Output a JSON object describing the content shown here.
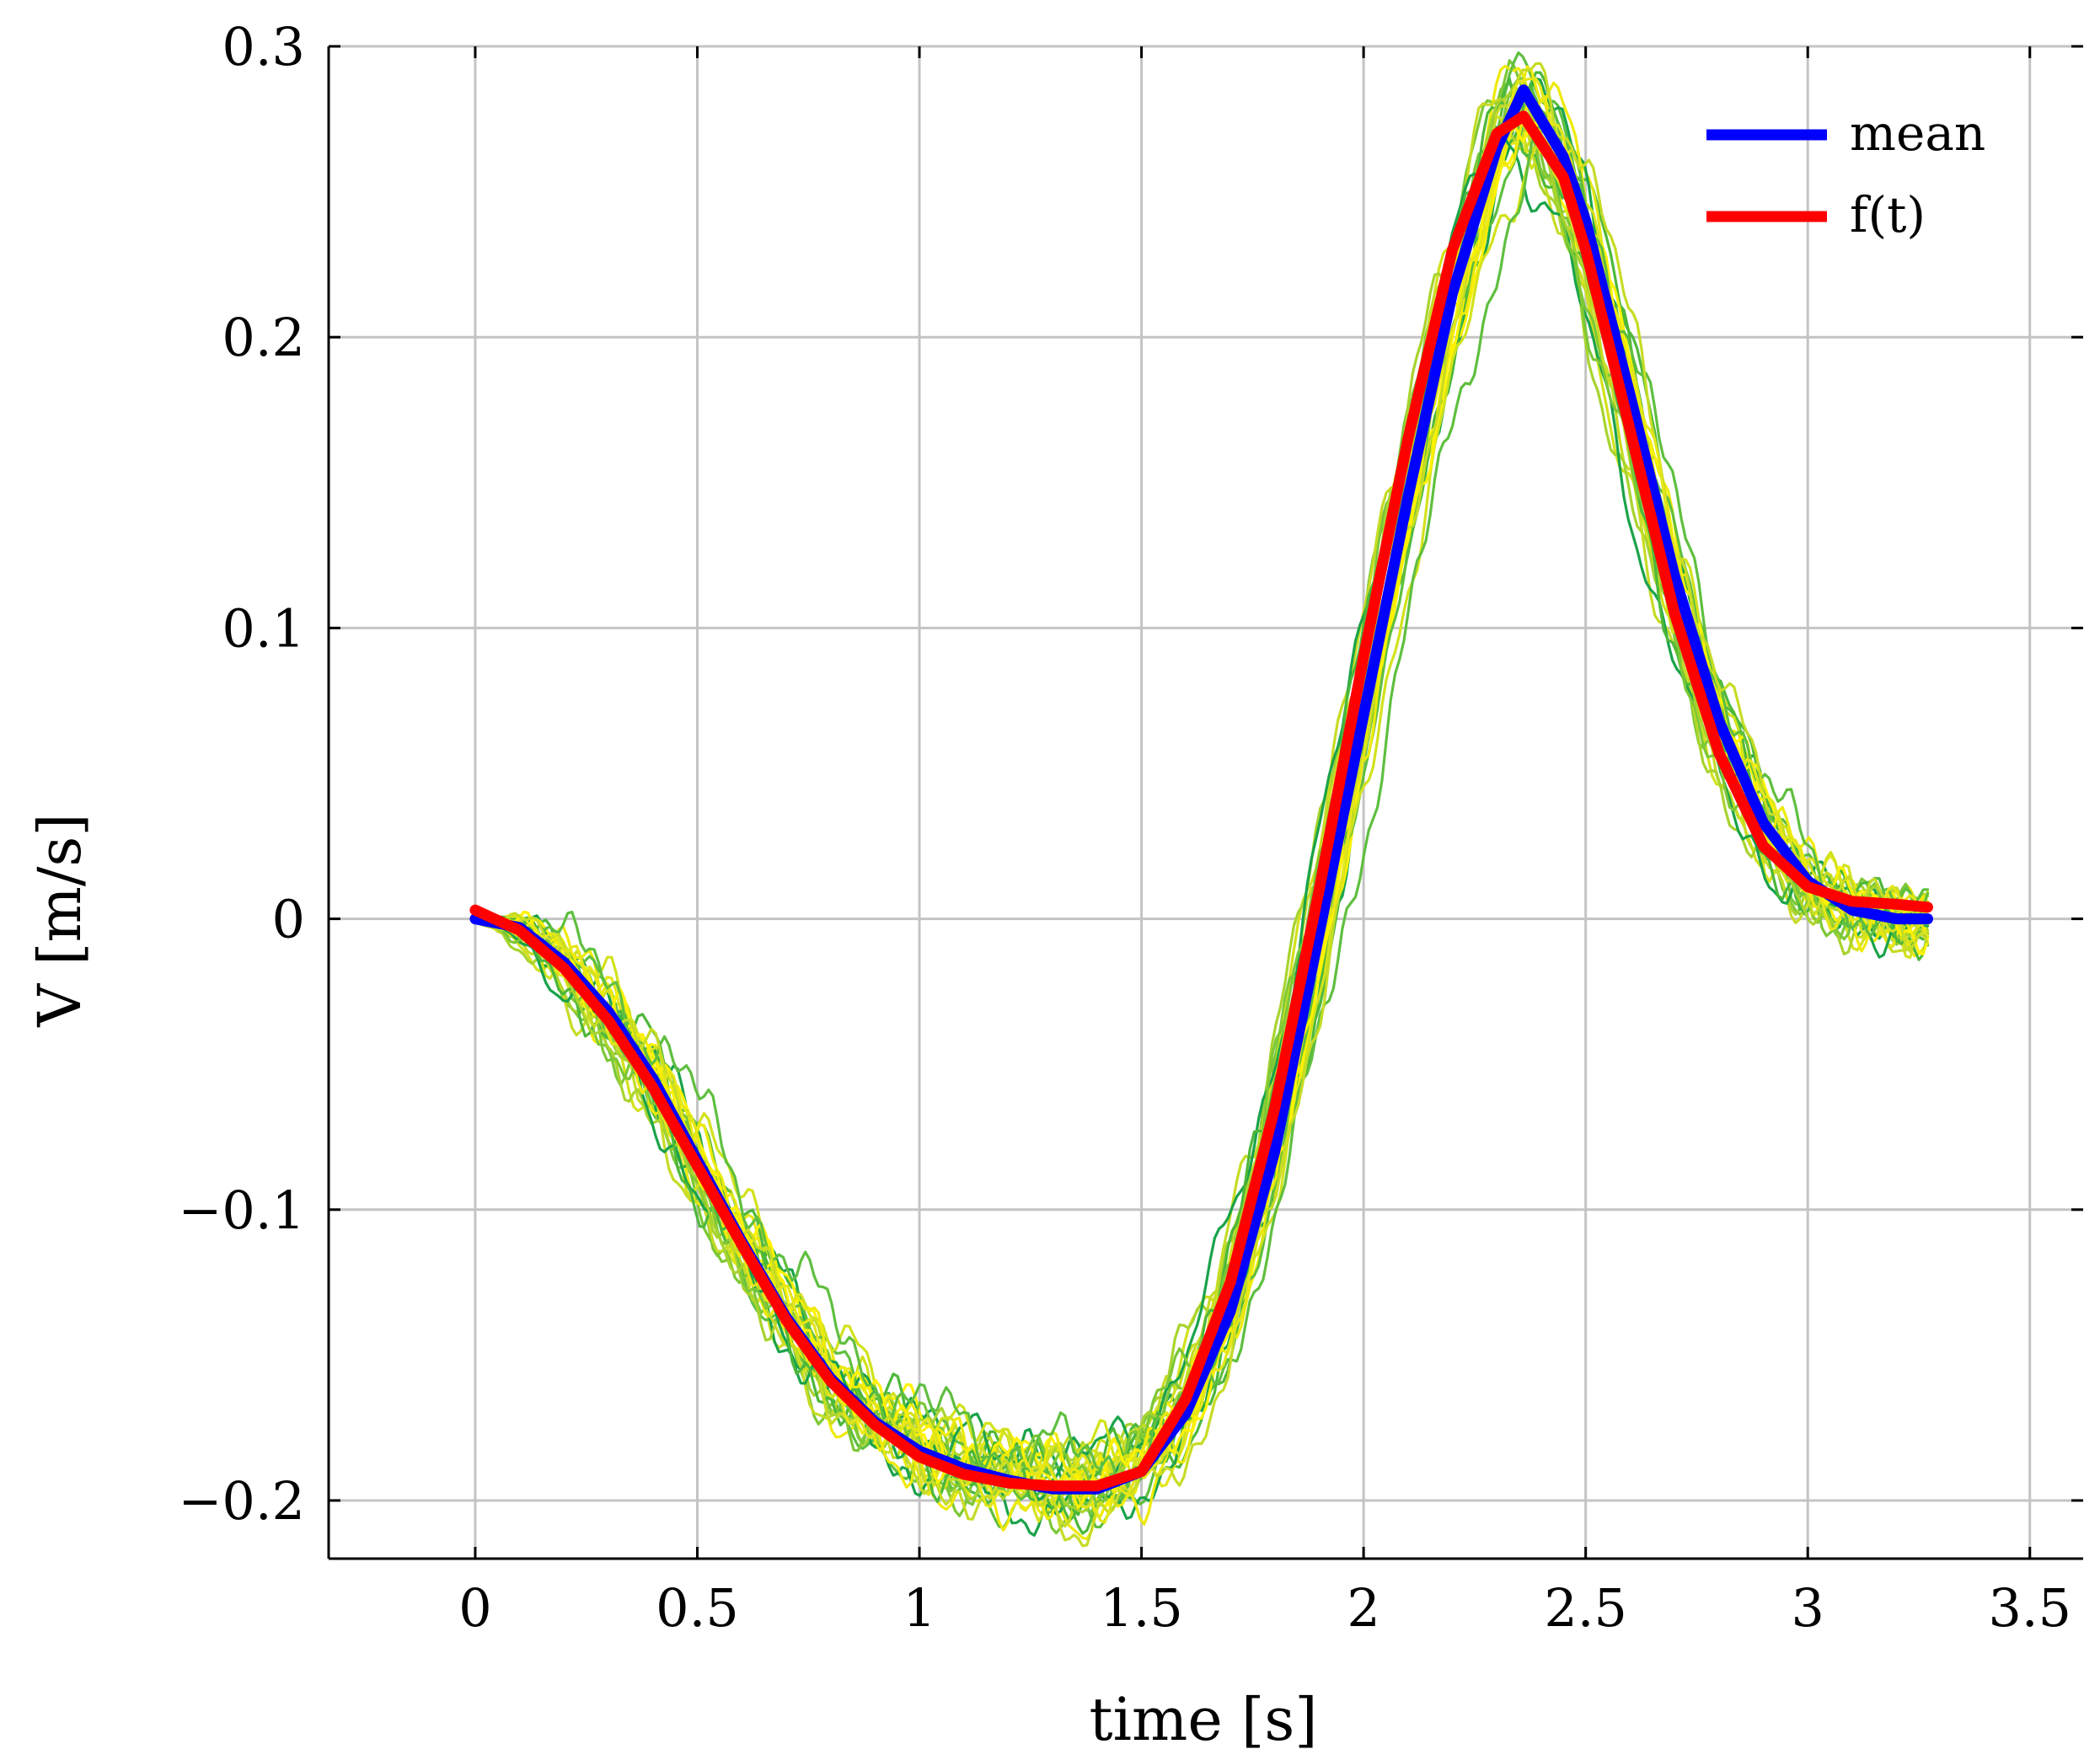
{
  "chart_data": {
    "type": "line",
    "title": "",
    "xlabel": "time [s]",
    "ylabel": "V [m/s]",
    "xlim": [
      -0.33,
      3.62
    ],
    "ylim": [
      -0.22,
      0.3
    ],
    "xticks": [
      0,
      0.5,
      1,
      1.5,
      2,
      2.5,
      3,
      3.5
    ],
    "xtick_labels": [
      "0",
      "0.5",
      "1",
      "1.5",
      "2",
      "2.5",
      "3",
      "3.5"
    ],
    "yticks": [
      -0.2,
      -0.1,
      0,
      0.1,
      0.2,
      0.3
    ],
    "ytick_labels": [
      "−0.2",
      "−0.1",
      "0",
      "0.1",
      "0.2",
      "0.3"
    ],
    "grid": true,
    "legend_position": "top-right",
    "legend": [
      "mean",
      "f(t)"
    ],
    "trial_colors": [
      "#1aa34a",
      "#4cb83a",
      "#7cc836",
      "#a8d42e",
      "#d2e21c",
      "#eeea0a",
      "#fff200",
      "#5fbf3f",
      "#c6dc25",
      "#e4e619"
    ],
    "trial_count": 30,
    "x": [
      0,
      0.1,
      0.2,
      0.3,
      0.4,
      0.5,
      0.6,
      0.7,
      0.8,
      0.9,
      1.0,
      1.1,
      1.2,
      1.3,
      1.4,
      1.5,
      1.6,
      1.7,
      1.8,
      1.9,
      2.0,
      2.1,
      2.2,
      2.3,
      2.36,
      2.45,
      2.5,
      2.6,
      2.7,
      2.8,
      2.9,
      3.0,
      3.1,
      3.2,
      3.27
    ],
    "series": [
      {
        "name": "mean",
        "color": "#0000ff",
        "values": [
          0.0,
          -0.003,
          -0.015,
          -0.032,
          -0.055,
          -0.083,
          -0.111,
          -0.137,
          -0.158,
          -0.173,
          -0.183,
          -0.189,
          -0.193,
          -0.196,
          -0.196,
          -0.19,
          -0.17,
          -0.135,
          -0.08,
          -0.005,
          0.07,
          0.145,
          0.215,
          0.265,
          0.285,
          0.262,
          0.24,
          0.18,
          0.118,
          0.068,
          0.033,
          0.013,
          0.003,
          0.0,
          0.0
        ]
      },
      {
        "name": "f(t)",
        "color": "#ff0000",
        "values": [
          0.003,
          -0.004,
          -0.017,
          -0.035,
          -0.058,
          -0.085,
          -0.112,
          -0.138,
          -0.159,
          -0.174,
          -0.185,
          -0.191,
          -0.194,
          -0.195,
          -0.195,
          -0.19,
          -0.165,
          -0.125,
          -0.065,
          0.01,
          0.09,
          0.165,
          0.23,
          0.27,
          0.276,
          0.255,
          0.23,
          0.168,
          0.105,
          0.057,
          0.025,
          0.011,
          0.006,
          0.005,
          0.004
        ]
      }
    ]
  }
}
